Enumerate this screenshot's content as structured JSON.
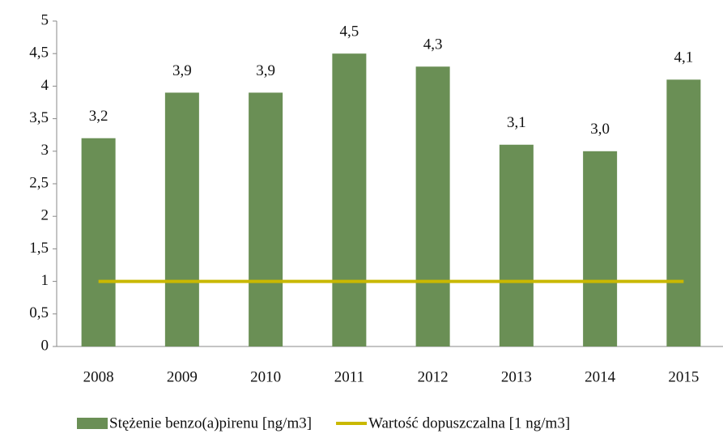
{
  "chart_data": {
    "type": "bar",
    "categories": [
      "2008",
      "2009",
      "2010",
      "2011",
      "2012",
      "2013",
      "2014",
      "2015"
    ],
    "series": [
      {
        "name": "Stężenie benzo(a)pirenu [ng/m3]",
        "type": "bar",
        "color": "#6a8f55",
        "values": [
          3.2,
          3.9,
          3.9,
          4.5,
          4.3,
          3.1,
          3.0,
          4.1
        ],
        "value_labels": [
          "3,2",
          "3,9",
          "3,9",
          "4,5",
          "4,3",
          "3,1",
          "3,0",
          "4,1"
        ]
      },
      {
        "name": "Wartość dopuszczalna [1 ng/m3]",
        "type": "line",
        "color": "#c9b800",
        "values": [
          1,
          1,
          1,
          1,
          1,
          1,
          1,
          1
        ]
      }
    ],
    "ylim": [
      0,
      5
    ],
    "yticks": [
      0,
      {
        "value": 0.5,
        "label": "0,5"
      },
      1,
      {
        "value": 1.5,
        "label": "1,5"
      },
      2,
      {
        "value": 2.5,
        "label": "2,5"
      },
      3,
      {
        "value": 3.5,
        "label": "3,5"
      },
      4,
      {
        "value": 4.5,
        "label": "4,5"
      },
      5
    ],
    "grid": false
  }
}
